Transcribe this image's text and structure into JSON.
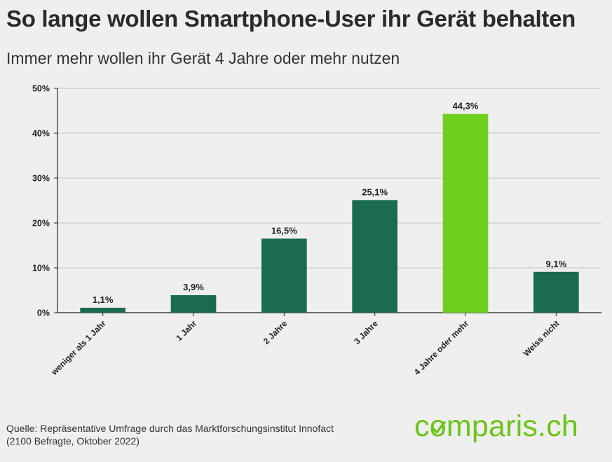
{
  "header": {
    "title": "So lange wollen Smartphone-User ihr Gerät behalten",
    "subtitle": "Immer mehr wollen ihr Gerät 4 Jahre oder mehr nutzen"
  },
  "footer": {
    "source_line1": "Quelle: Repräsentative Umfrage durch das Marktforschungsinstitut Innofact",
    "source_line2": "(2100 Befragte, Oktober 2022)",
    "logo_before": "c",
    "logo_o": "o",
    "logo_after": "mparis.ch"
  },
  "colors": {
    "bar": "#1b6b4e",
    "highlight": "#6ecf1c",
    "grid": "#c4c4c4",
    "brand": "#6cc417"
  },
  "chart_data": {
    "type": "bar",
    "title": "So lange wollen Smartphone-User ihr Gerät behalten",
    "subtitle": "Immer mehr wollen ihr Gerät 4 Jahre oder mehr nutzen",
    "xlabel": "",
    "ylabel": "",
    "ylim": [
      0,
      50
    ],
    "yticks": [
      0,
      10,
      20,
      30,
      40,
      50
    ],
    "ytick_labels": [
      "0%",
      "10%",
      "20%",
      "30%",
      "40%",
      "50%"
    ],
    "grid": true,
    "categories": [
      "weniger als 1 Jahr",
      "1 Jahr",
      "2 Jahre",
      "3 Jahre",
      "4 Jahre oder mehr",
      "Weiss nicht"
    ],
    "values": [
      1.1,
      3.9,
      16.5,
      25.1,
      44.3,
      9.1
    ],
    "value_labels": [
      "1,1%",
      "3,9%",
      "16,5%",
      "25,1%",
      "44,3%",
      "9,1%"
    ],
    "highlight_index": 4
  }
}
